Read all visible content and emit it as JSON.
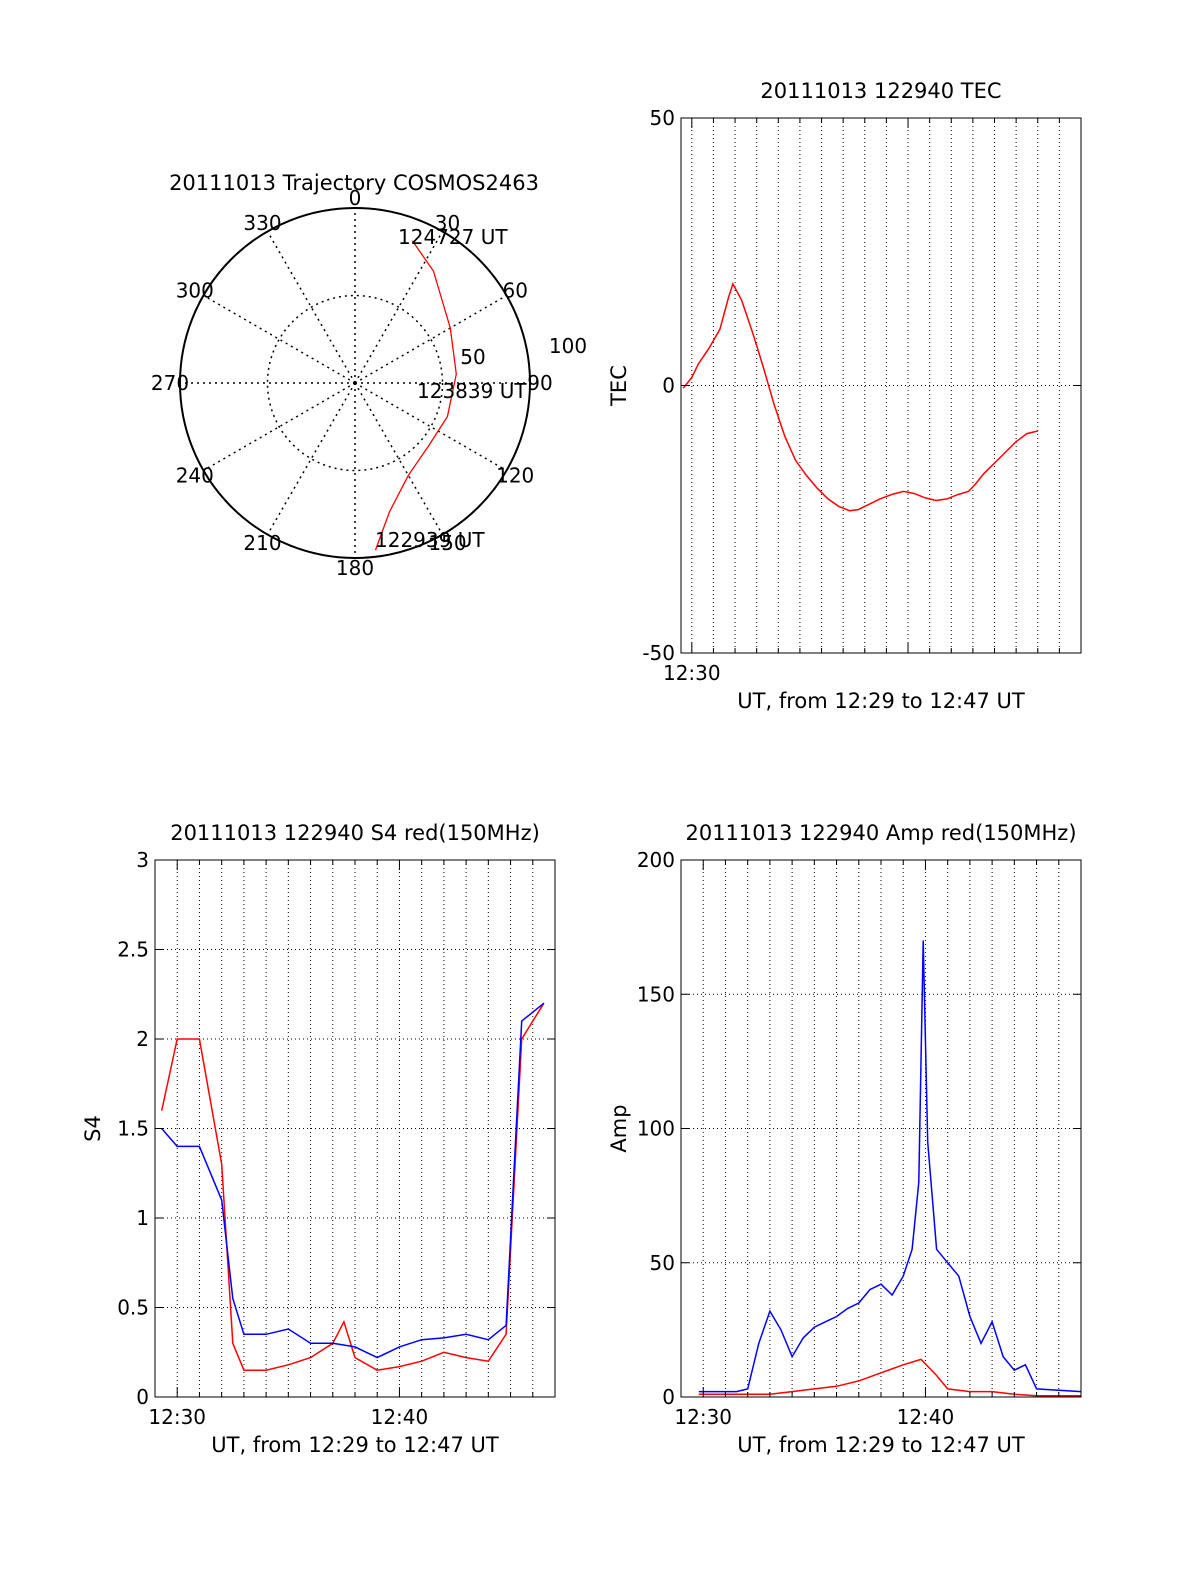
{
  "chart_data": [
    {
      "type": "scatter",
      "kind": "polar-trajectory",
      "title": "20111013 Trajectory COSMOS2463",
      "azimuth_labels": [
        "0",
        "30",
        "60",
        "90",
        "120",
        "150",
        "180",
        "210",
        "240",
        "270",
        "300",
        "330"
      ],
      "radius_ring_labels": [
        "50",
        "100"
      ],
      "series": [
        {
          "color": "#ff0000",
          "points": [
            {
              "time": "122939",
              "azimuth": 173,
              "radius": 101
            },
            {
              "azimuth": 165,
              "radius": 80
            },
            {
              "azimuth": 150,
              "radius": 64
            },
            {
              "azimuth": 130,
              "radius": 58
            },
            {
              "time": "123839",
              "azimuth": 110,
              "radius": 59
            },
            {
              "azimuth": 85,
              "radius": 61
            },
            {
              "azimuth": 60,
              "radius": 66
            },
            {
              "azimuth": 35,
              "radius": 82
            },
            {
              "time": "124727",
              "azimuth": 22,
              "radius": 92
            }
          ]
        }
      ],
      "point_labels": [
        "124727 UT",
        "123839 UT",
        "122939 UT"
      ]
    },
    {
      "type": "line",
      "title": "20111013 122940 TEC",
      "ylabel": "TEC",
      "xlabel": "UT, from 12:29 to 12:47 UT",
      "ylim": [
        -50,
        50
      ],
      "xlim_minutes": [
        29.5,
        48.0
      ],
      "yticks": [
        "50",
        "0",
        "-50"
      ],
      "xticks": [
        {
          "minute": 30,
          "label": "12:30"
        }
      ],
      "grid": true,
      "series": [
        {
          "color": "#ff0000",
          "points": [
            [
              29.6,
              -0.5
            ],
            [
              30.0,
              1.5
            ],
            [
              30.3,
              4
            ],
            [
              30.8,
              7
            ],
            [
              31.3,
              10.5
            ],
            [
              31.7,
              16.5
            ],
            [
              31.9,
              19
            ],
            [
              32.3,
              16
            ],
            [
              32.8,
              10
            ],
            [
              33.3,
              3.5
            ],
            [
              33.8,
              -3.5
            ],
            [
              34.3,
              -9.5
            ],
            [
              34.8,
              -14
            ],
            [
              35.3,
              -16.8
            ],
            [
              35.8,
              -19.2
            ],
            [
              36.3,
              -21.2
            ],
            [
              36.8,
              -22.6
            ],
            [
              37.3,
              -23.4
            ],
            [
              37.7,
              -23.2
            ],
            [
              38.2,
              -22.2
            ],
            [
              38.7,
              -21.2
            ],
            [
              39.3,
              -20.3
            ],
            [
              39.8,
              -19.8
            ],
            [
              40.3,
              -20.2
            ],
            [
              40.8,
              -21.0
            ],
            [
              41.3,
              -21.5
            ],
            [
              41.8,
              -21.2
            ],
            [
              42.3,
              -20.4
            ],
            [
              42.8,
              -19.8
            ],
            [
              43.1,
              -18.5
            ],
            [
              43.5,
              -16.5
            ],
            [
              44.0,
              -14.5
            ],
            [
              44.5,
              -12.5
            ],
            [
              45.0,
              -10.5
            ],
            [
              45.5,
              -9.0
            ],
            [
              46.0,
              -8.5
            ]
          ]
        }
      ]
    },
    {
      "type": "line",
      "title": "20111013 122940 S4 red(150MHz)",
      "ylabel": "S4",
      "xlabel": "UT, from 12:29 to 12:47 UT",
      "ylim": [
        0,
        3
      ],
      "xlim_minutes": [
        29.0,
        47.0
      ],
      "yticks": [
        "0",
        "0.5",
        "1",
        "1.5",
        "2",
        "2.5",
        "3"
      ],
      "xticks": [
        {
          "minute": 30,
          "label": "12:30"
        },
        {
          "minute": 40,
          "label": "12:40"
        }
      ],
      "grid": true,
      "series": [
        {
          "color": "#ff0000",
          "points": [
            [
              29.3,
              1.6
            ],
            [
              30.0,
              2.0
            ],
            [
              31.0,
              2.0
            ],
            [
              32.0,
              1.3
            ],
            [
              32.5,
              0.3
            ],
            [
              33.0,
              0.15
            ],
            [
              34.0,
              0.15
            ],
            [
              35.0,
              0.18
            ],
            [
              36.0,
              0.22
            ],
            [
              37.0,
              0.3
            ],
            [
              37.5,
              0.42
            ],
            [
              38.0,
              0.22
            ],
            [
              39.0,
              0.15
            ],
            [
              40.0,
              0.17
            ],
            [
              41.0,
              0.2
            ],
            [
              42.0,
              0.25
            ],
            [
              43.0,
              0.22
            ],
            [
              44.0,
              0.2
            ],
            [
              44.8,
              0.35
            ],
            [
              45.5,
              2.0
            ],
            [
              46.5,
              2.2
            ]
          ]
        },
        {
          "color": "#0000ff",
          "points": [
            [
              29.3,
              1.5
            ],
            [
              30.0,
              1.4
            ],
            [
              31.0,
              1.4
            ],
            [
              32.0,
              1.1
            ],
            [
              32.5,
              0.55
            ],
            [
              33.0,
              0.35
            ],
            [
              34.0,
              0.35
            ],
            [
              35.0,
              0.38
            ],
            [
              36.0,
              0.3
            ],
            [
              37.0,
              0.3
            ],
            [
              38.0,
              0.28
            ],
            [
              39.0,
              0.22
            ],
            [
              40.0,
              0.28
            ],
            [
              41.0,
              0.32
            ],
            [
              42.0,
              0.33
            ],
            [
              43.0,
              0.35
            ],
            [
              44.0,
              0.32
            ],
            [
              44.8,
              0.4
            ],
            [
              45.5,
              2.1
            ],
            [
              46.5,
              2.2
            ]
          ]
        }
      ]
    },
    {
      "type": "line",
      "title": "20111013 122940 Amp red(150MHz)",
      "ylabel": "Amp",
      "xlabel": "UT, from 12:29 to 12:47 UT",
      "ylim": [
        0,
        200
      ],
      "xlim_minutes": [
        29.0,
        47.0
      ],
      "yticks": [
        "0",
        "50",
        "100",
        "150",
        "200"
      ],
      "xticks": [
        {
          "minute": 30,
          "label": "12:30"
        },
        {
          "minute": 40,
          "label": "12:40"
        }
      ],
      "grid": true,
      "series": [
        {
          "color": "#ff0000",
          "points": [
            [
              29.8,
              1
            ],
            [
              32.0,
              1
            ],
            [
              33.0,
              1
            ],
            [
              34.0,
              2
            ],
            [
              35.0,
              3
            ],
            [
              36.0,
              4
            ],
            [
              37.0,
              6
            ],
            [
              38.0,
              9
            ],
            [
              39.0,
              12
            ],
            [
              39.8,
              14
            ],
            [
              40.5,
              8
            ],
            [
              41.0,
              3
            ],
            [
              42.0,
              2
            ],
            [
              43.0,
              2
            ],
            [
              44.0,
              1
            ],
            [
              45.0,
              0.5
            ],
            [
              47.0,
              0.5
            ]
          ]
        },
        {
          "color": "#0000ff",
          "points": [
            [
              29.8,
              2
            ],
            [
              31.5,
              2
            ],
            [
              32.0,
              3
            ],
            [
              32.5,
              20
            ],
            [
              33.0,
              32
            ],
            [
              33.5,
              25
            ],
            [
              34.0,
              15
            ],
            [
              34.5,
              22
            ],
            [
              35.0,
              26
            ],
            [
              35.5,
              28
            ],
            [
              36.0,
              30
            ],
            [
              36.5,
              33
            ],
            [
              37.0,
              35
            ],
            [
              37.5,
              40
            ],
            [
              38.0,
              42
            ],
            [
              38.5,
              38
            ],
            [
              39.0,
              45
            ],
            [
              39.4,
              55
            ],
            [
              39.7,
              80
            ],
            [
              39.9,
              170
            ],
            [
              40.1,
              95
            ],
            [
              40.5,
              55
            ],
            [
              41.0,
              50
            ],
            [
              41.5,
              45
            ],
            [
              42.0,
              30
            ],
            [
              42.5,
              20
            ],
            [
              43.0,
              28
            ],
            [
              43.5,
              15
            ],
            [
              44.0,
              10
            ],
            [
              44.5,
              12
            ],
            [
              45.0,
              3
            ],
            [
              47.0,
              2
            ]
          ]
        }
      ]
    }
  ]
}
